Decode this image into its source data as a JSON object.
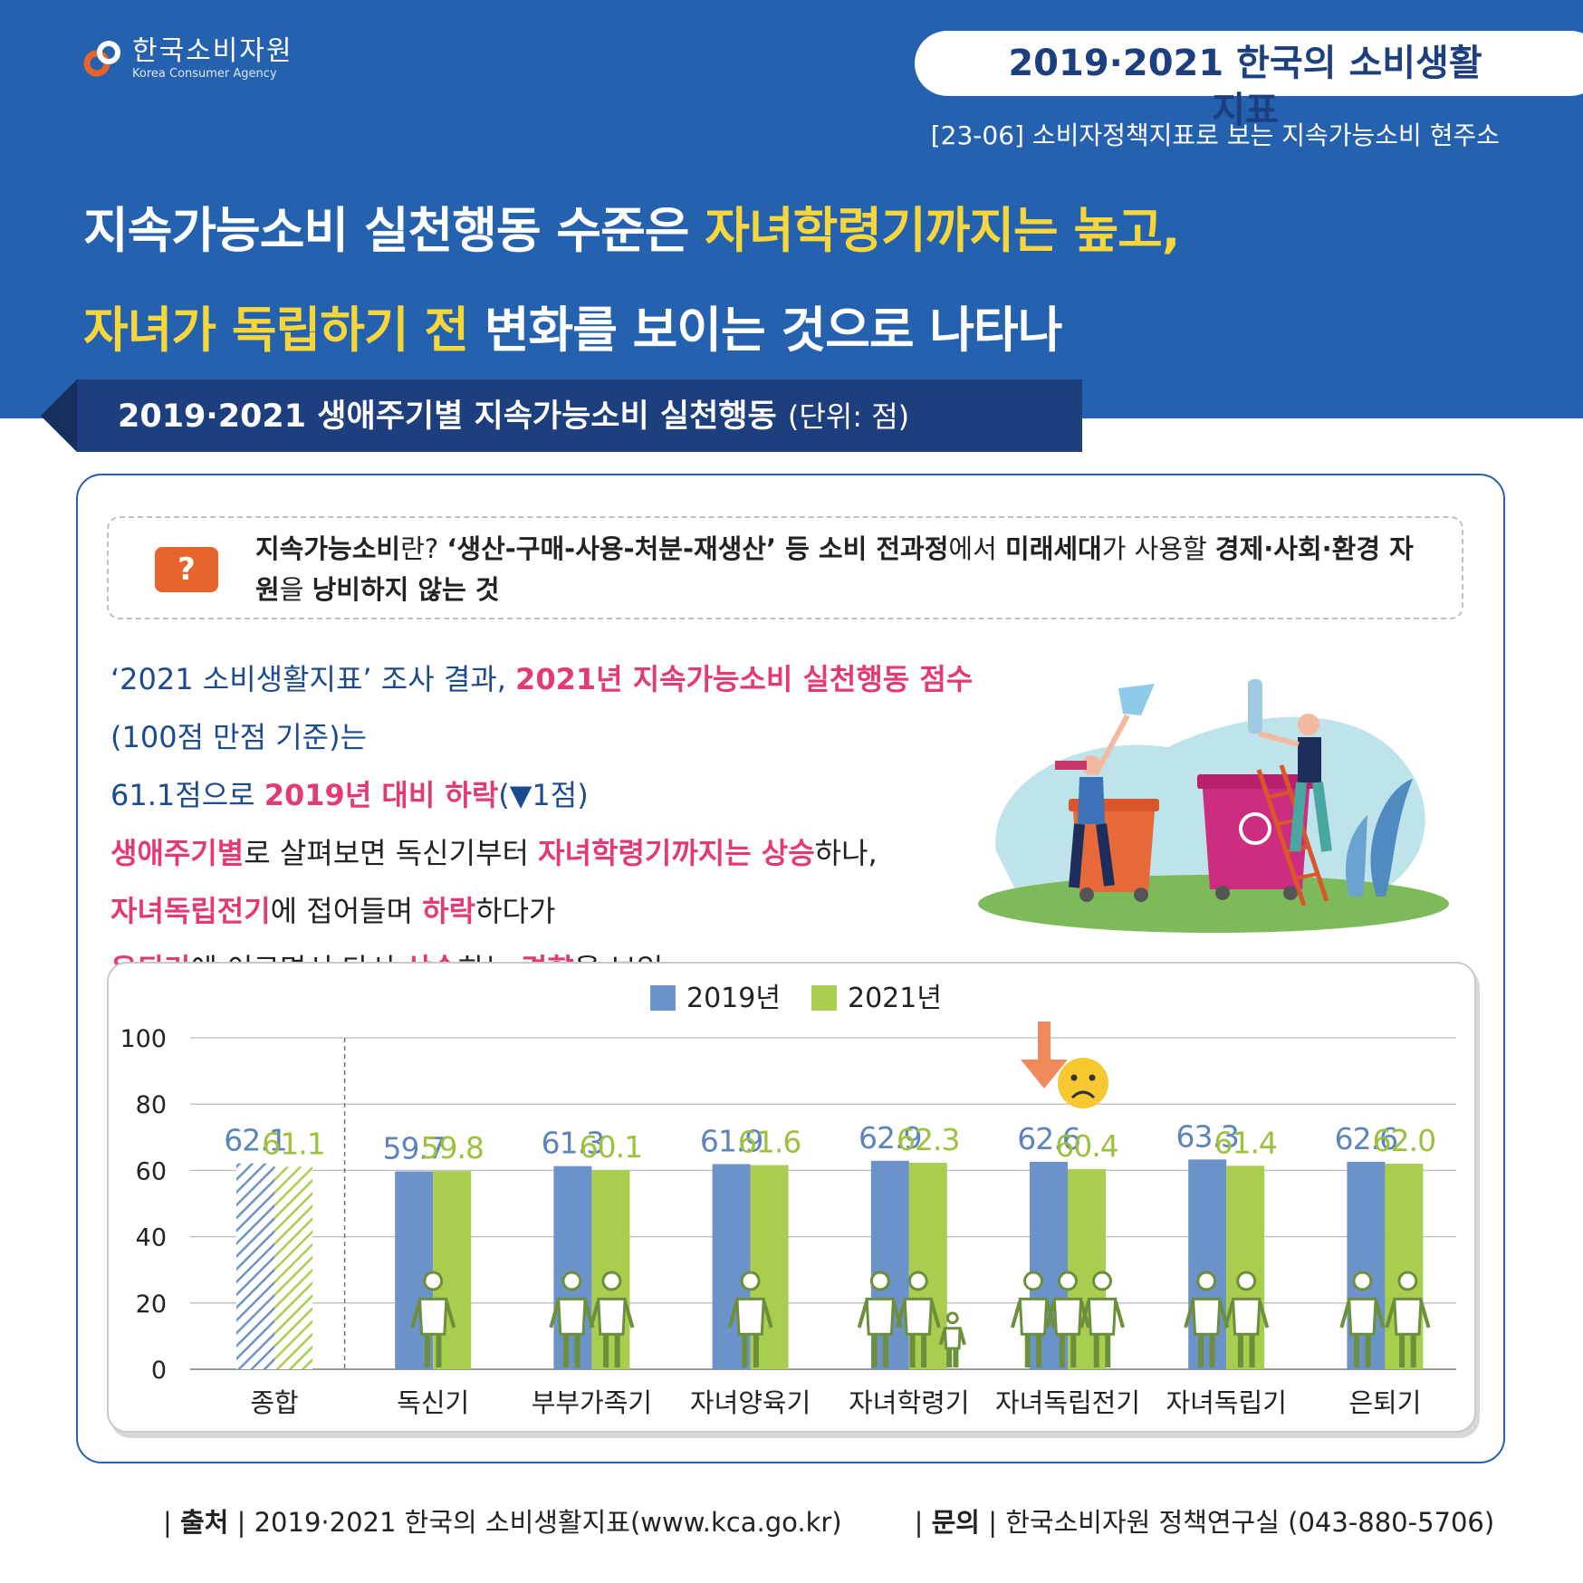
{
  "header": {
    "org_name_ko": "한국소비자원",
    "org_name_en": "Korea Consumer Agency",
    "series_title": "2019·2021 한국의 소비생활지표",
    "report_code": "[23-06] 소비자정책지표로 보는 지속가능소비 현주소",
    "headline_line1_a": "지속가능소비 실천행동 수준은 ",
    "headline_line1_b": "자녀학령기까지는 높고,",
    "headline_line2_a": "자녀가 독립하기 전",
    "headline_line2_b": " 변화를 보이는 것으로 나타나",
    "accent_color": "#f6d63a",
    "bg_color": "#2461ae"
  },
  "banner": {
    "title": "2019·2021 생애주기별 지속가능소비 실천행동",
    "unit": "(단위: 점)"
  },
  "definition": {
    "icon": "question-icon",
    "icon_char": "?",
    "p1": "지속가능소비",
    "p2": "란? ",
    "p3": "‘생산-구매-사용-처분-재생산’ 등 소비 전과정",
    "p4": "에서 ",
    "p5": "미래세대",
    "p6": "가 사용할 ",
    "p7": "경제·사회·환경 자원",
    "p8": "을 ",
    "p9": "낭비하지 않는 것"
  },
  "summary": {
    "l1a": "‘2021 소비생활지표’ 조사 결과, ",
    "l1b": "2021년 지속가능소비 실천행동 점수",
    "l1c": "(100점 만점 기준)는",
    "l2a": "61.1점으로 ",
    "l2b": "2019년 대비 하락",
    "l2c": "(▼1점)",
    "l3a": "생애주기별",
    "l3b": "로 살펴보면 독신기부터 ",
    "l3c": "자녀학령기까지는 상승",
    "l3d": "하나,",
    "l4a": "자녀독립전기",
    "l4b": "에 접어들며 ",
    "l4c": "하락",
    "l4d": "하다가",
    "l5a": "은퇴기",
    "l5b": "에 이르면서 다시 ",
    "l5c": "상승",
    "l5d": "하는 ",
    "l5e": "경향",
    "l5f": "을 보임"
  },
  "chart_data": {
    "type": "bar",
    "categories": [
      "종합",
      "독신기",
      "부부가족기",
      "자녀양육기",
      "자녀학령기",
      "자녀독립전기",
      "자녀독립기",
      "은퇴기"
    ],
    "series": [
      {
        "name": "2019년",
        "values": [
          62.1,
          59.7,
          61.3,
          61.9,
          62.9,
          62.6,
          63.3,
          62.6
        ],
        "labels": [
          "62.1",
          "59.7",
          "61.3",
          "61.9",
          "62.9",
          "62.6",
          "63.3",
          "62.6"
        ],
        "color": "#6b93c9",
        "label_color": "#5d84bd"
      },
      {
        "name": "2021년",
        "values": [
          61.1,
          59.8,
          60.1,
          61.6,
          62.3,
          60.4,
          61.4,
          62.0
        ],
        "labels": [
          "61.1",
          "59.8",
          "60.1",
          "61.6",
          "62.3",
          "60.4",
          "61.4",
          "62.0"
        ],
        "color": "#a9cd4e",
        "label_color": "#9bc13e"
      }
    ],
    "yticks": [
      "0",
      "20",
      "40",
      "60",
      "80",
      "100"
    ],
    "ylim": [
      0,
      100
    ],
    "legend": "top-center",
    "grid": true,
    "highlight_category": "자녀독립전기",
    "highlight_icons": [
      "down-arrow-icon",
      "sad-face-icon"
    ]
  },
  "footer": {
    "source_label": "출처",
    "source_text": "2019·2021 한국의 소비생활지표(www.kca.go.kr)",
    "contact_label": "문의",
    "contact_text": "한국소비자원 정책연구실 (043-880-5706)"
  }
}
